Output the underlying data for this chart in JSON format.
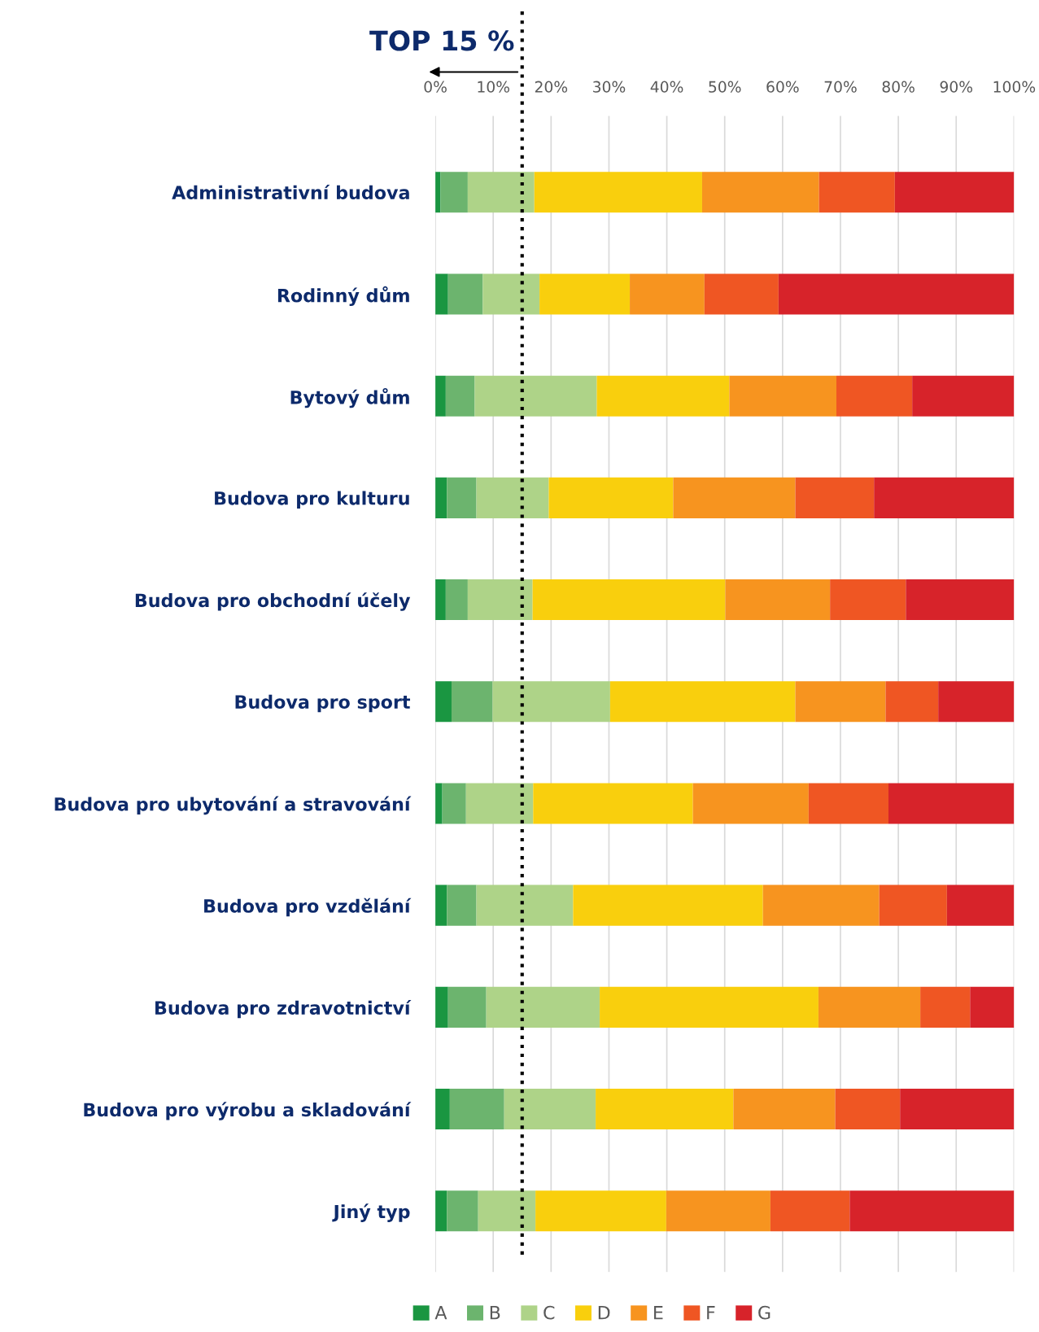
{
  "chart_data": {
    "type": "bar",
    "orientation": "horizontal",
    "stacked": true,
    "categories": [
      "Administrativní budova",
      "Rodinný dům",
      "Bytový dům",
      "Budova pro kulturu",
      "Budova pro obchodní účely",
      "Budova pro sport",
      "Budova pro ubytování a stravování",
      "Budova pro vzdělání",
      "Budova pro zdravotnictví",
      "Budova pro výrobu a skladování",
      "Jiný typ"
    ],
    "series": [
      {
        "name": "A",
        "color": "#1a9641",
        "values": [
          0.9,
          2.2,
          1.8,
          2.0,
          1.8,
          2.8,
          1.2,
          2.0,
          2.2,
          2.5,
          2.0
        ]
      },
      {
        "name": "B",
        "color": "#6cb46e",
        "values": [
          4.7,
          6.0,
          5.0,
          5.1,
          3.8,
          7.1,
          4.1,
          5.1,
          6.6,
          9.4,
          5.4
        ]
      },
      {
        "name": "C",
        "color": "#aed388",
        "values": [
          11.5,
          9.8,
          21.1,
          12.5,
          11.2,
          20.3,
          11.6,
          16.7,
          19.6,
          15.8,
          9.9
        ]
      },
      {
        "name": "D",
        "color": "#f9cf0d",
        "values": [
          29.0,
          15.6,
          22.9,
          21.5,
          33.3,
          32.0,
          27.6,
          32.8,
          37.8,
          23.8,
          22.6
        ]
      },
      {
        "name": "E",
        "color": "#f7941f",
        "values": [
          20.2,
          12.9,
          18.5,
          21.1,
          18.1,
          15.6,
          20.0,
          20.1,
          17.6,
          17.6,
          18.0
        ]
      },
      {
        "name": "F",
        "color": "#ef5623",
        "values": [
          13.1,
          12.8,
          13.1,
          13.6,
          13.1,
          9.1,
          13.8,
          11.7,
          8.6,
          11.2,
          13.7
        ]
      },
      {
        "name": "G",
        "color": "#d7232a",
        "values": [
          20.6,
          40.7,
          17.6,
          24.2,
          18.7,
          13.1,
          21.7,
          11.6,
          7.6,
          19.7,
          28.4
        ]
      }
    ],
    "xlim": [
      0,
      100
    ],
    "xticks": [
      {
        "value": 0,
        "label": "0%"
      },
      {
        "value": 10,
        "label": "10%"
      },
      {
        "value": 20,
        "label": "20%"
      },
      {
        "value": 30,
        "label": "30%"
      },
      {
        "value": 40,
        "label": "40%"
      },
      {
        "value": 50,
        "label": "50%"
      },
      {
        "value": 60,
        "label": "60%"
      },
      {
        "value": 70,
        "label": "70%"
      },
      {
        "value": 80,
        "label": "80%"
      },
      {
        "value": 90,
        "label": "90%"
      },
      {
        "value": 100,
        "label": "100%"
      }
    ],
    "grid": "x",
    "legend": "bottom",
    "ref_lines": [
      {
        "axis": "x",
        "value": 15,
        "label": "TOP 15 %",
        "color": "#000000",
        "line_style": "dotted"
      }
    ]
  }
}
